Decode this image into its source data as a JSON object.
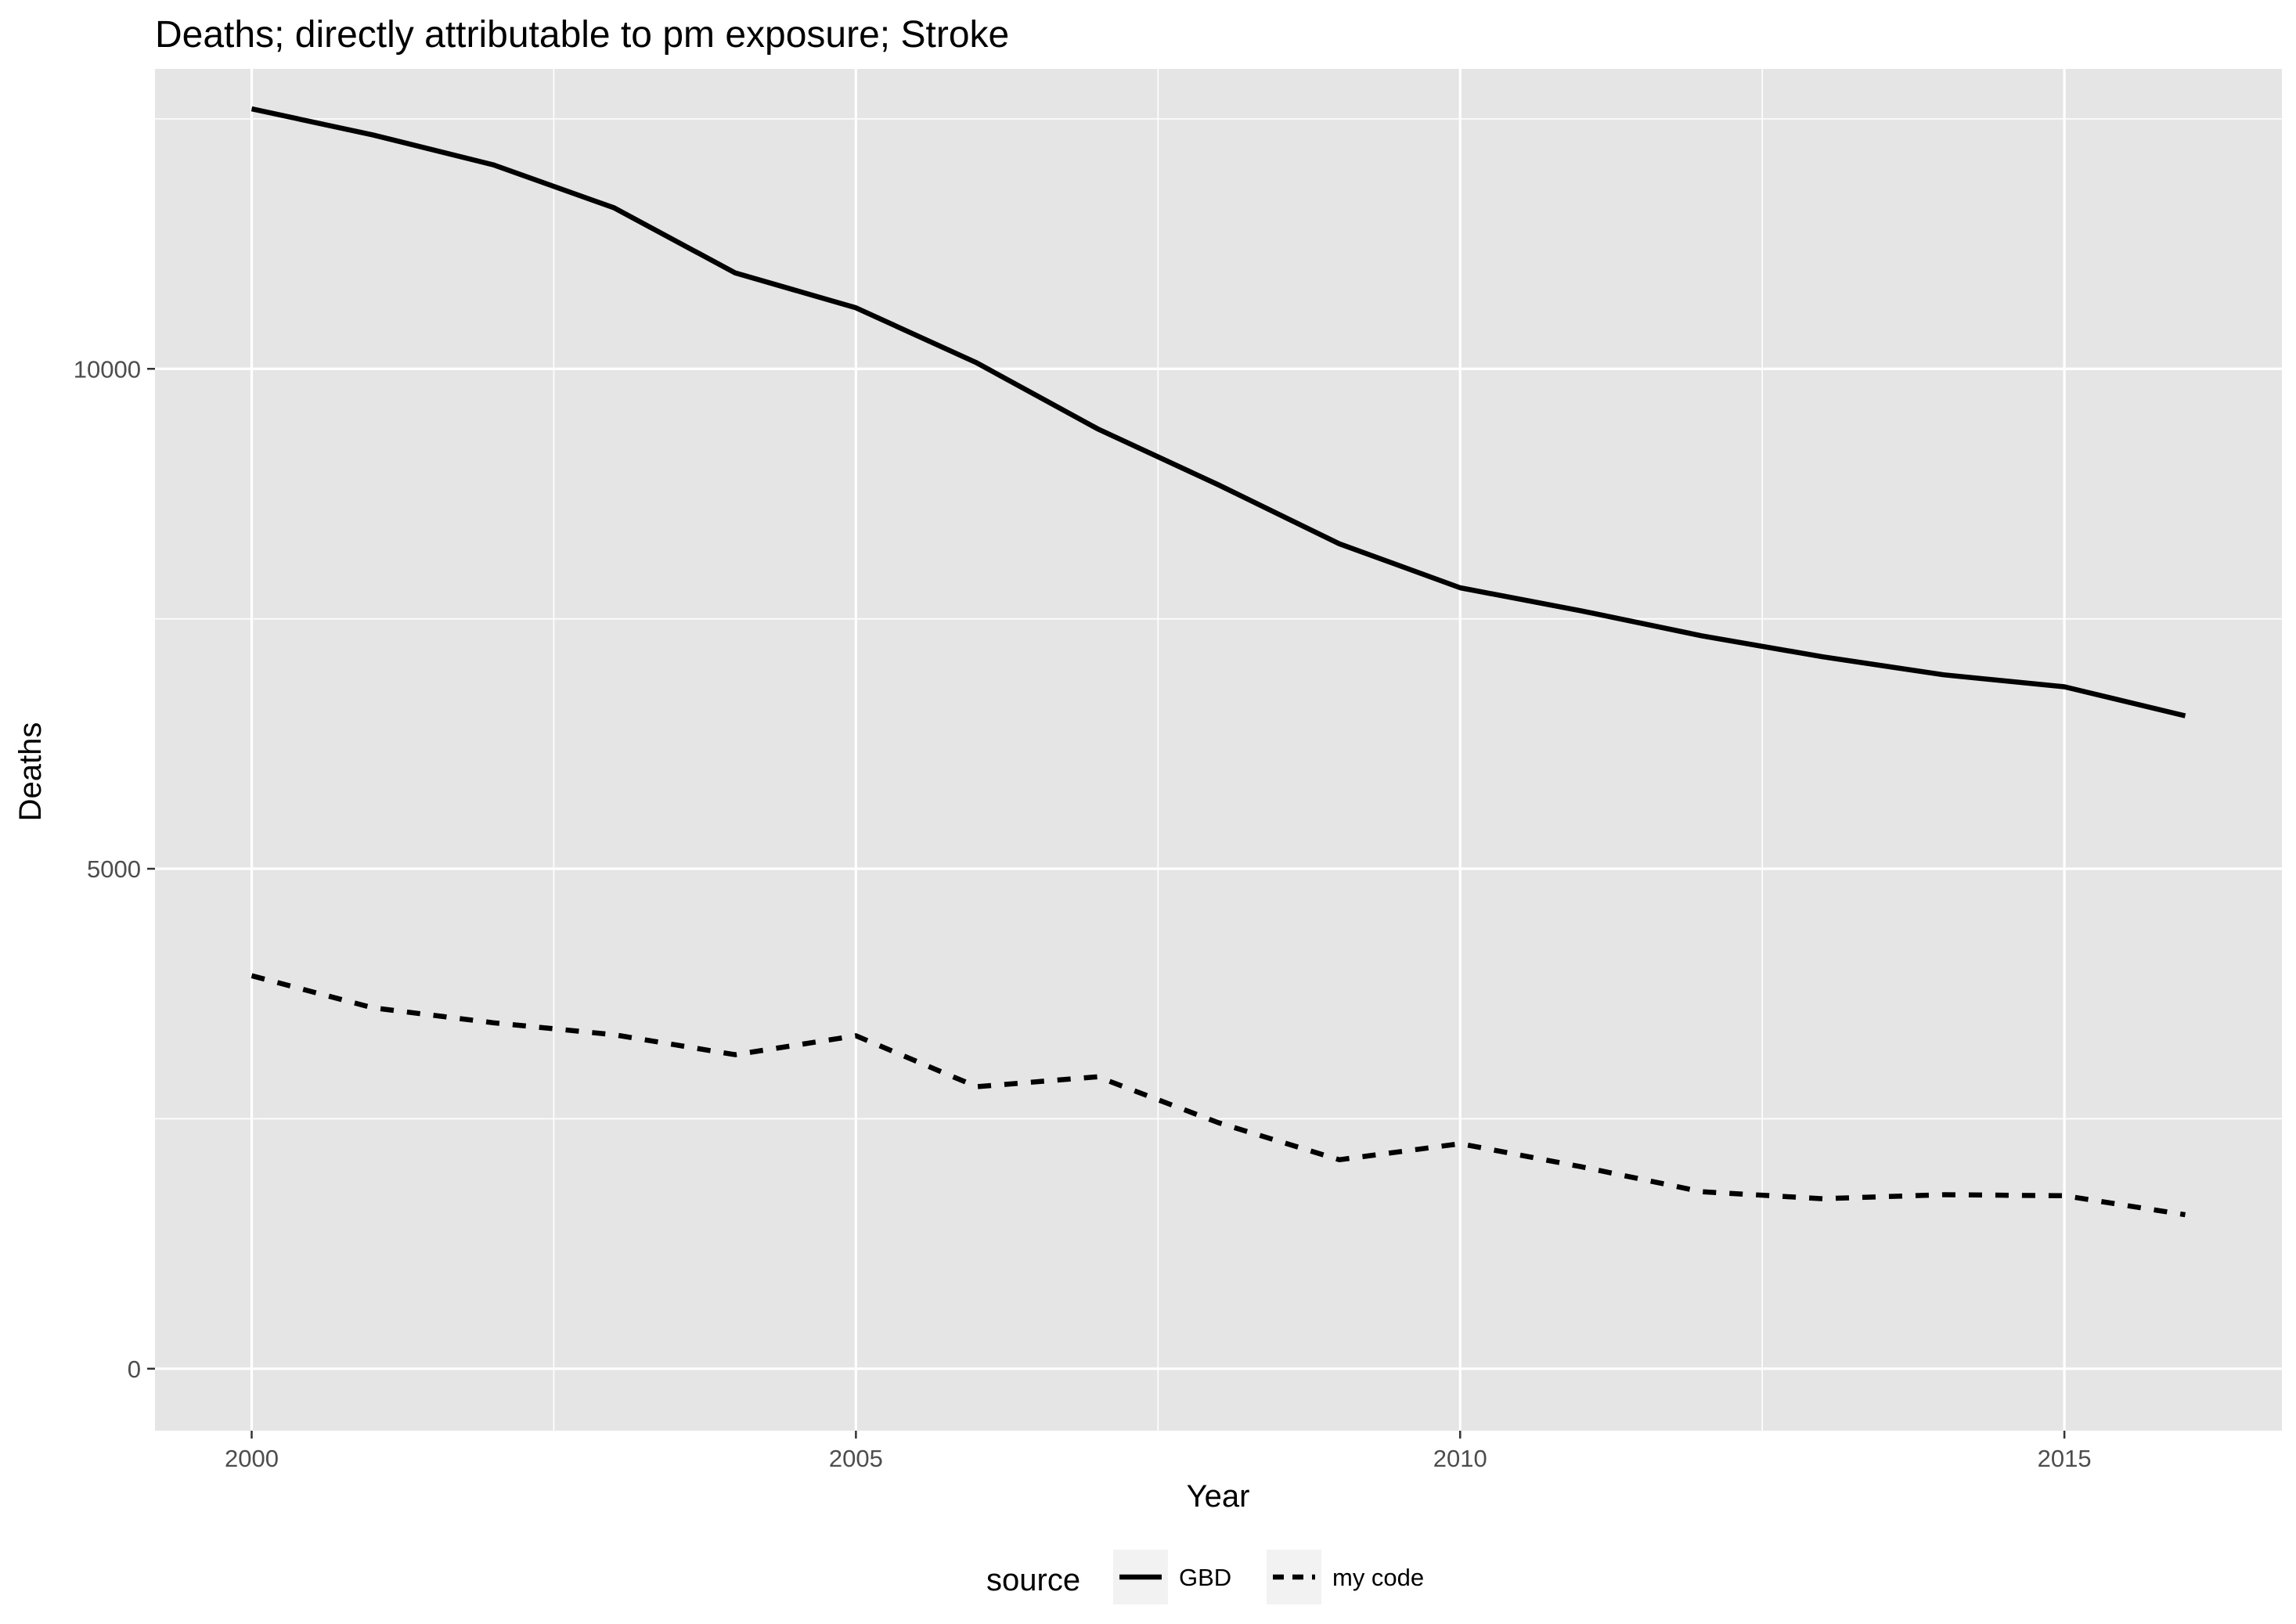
{
  "chart_data": {
    "type": "line",
    "title": "Deaths; directly attributable to pm exposure; Stroke",
    "xlabel": "Year",
    "ylabel": "Deaths",
    "x": [
      2000,
      2001,
      2002,
      2003,
      2004,
      2005,
      2006,
      2007,
      2008,
      2009,
      2010,
      2011,
      2012,
      2013,
      2014,
      2015,
      2016
    ],
    "series": [
      {
        "name": "GBD",
        "linetype": "solid",
        "values": [
          12600,
          12340,
          12040,
          11610,
          10960,
          10610,
          10060,
          9400,
          8840,
          8250,
          7810,
          7580,
          7330,
          7120,
          6940,
          6820,
          6530
        ]
      },
      {
        "name": "my code",
        "linetype": "dashed",
        "values": [
          3930,
          3610,
          3460,
          3340,
          3140,
          3330,
          2820,
          2920,
          2460,
          2090,
          2250,
          2020,
          1770,
          1700,
          1740,
          1730,
          1540
        ]
      }
    ],
    "xlim": [
      1999.2,
      2016.8
    ],
    "ylim": [
      -620,
      13000
    ],
    "x_ticks": [
      2000,
      2005,
      2010,
      2015
    ],
    "y_ticks": [
      0,
      5000,
      10000
    ],
    "x_tick_labels": [
      "2000",
      "2005",
      "2010",
      "2015"
    ],
    "y_tick_labels": [
      "0",
      "5000",
      "10000"
    ],
    "grid": true,
    "panel_color": "#e5e5e5",
    "grid_color": "#ffffff",
    "line_color": "#000000",
    "legend": {
      "title": "source",
      "position": "bottom",
      "entries": [
        "GBD",
        "my code"
      ]
    }
  }
}
